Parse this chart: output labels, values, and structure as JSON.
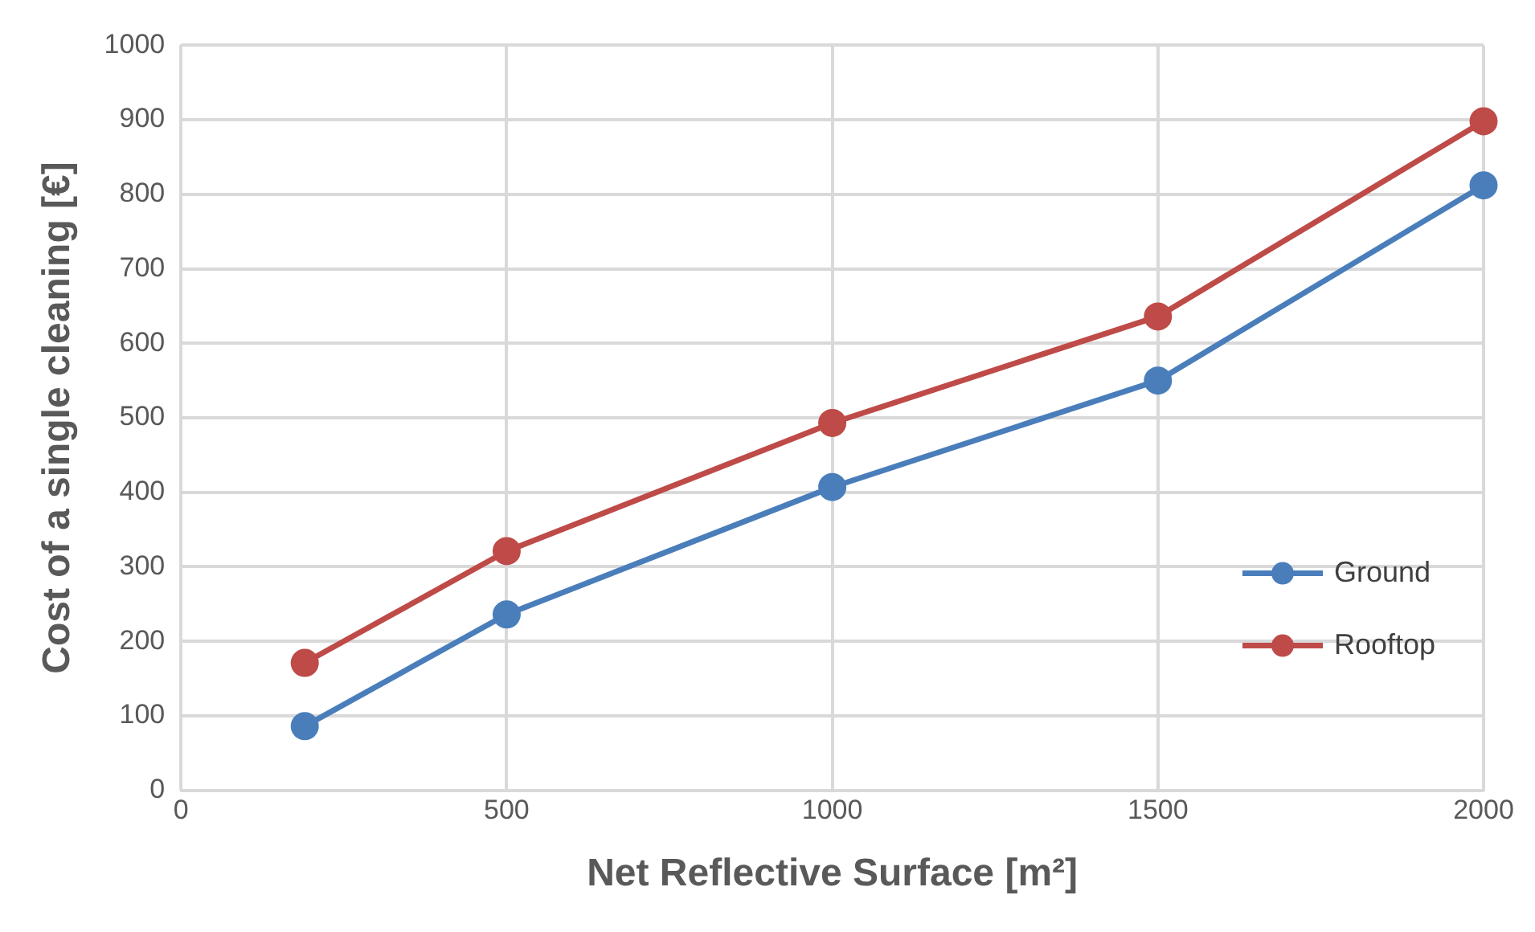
{
  "chart_data": {
    "type": "line",
    "xlabel": "Net Reflective Surface [m²]",
    "ylabel": "Cost of a single cleaning [€]",
    "xlim": [
      0,
      2000
    ],
    "xticks": [
      0,
      500,
      1000,
      1500,
      2000
    ],
    "ylim": [
      0,
      1000
    ],
    "yticks": [
      0,
      100,
      200,
      300,
      400,
      500,
      600,
      700,
      800,
      900,
      1000
    ],
    "x": [
      190,
      500,
      1000,
      1500,
      2000
    ],
    "series": [
      {
        "name": "Ground",
        "color": "#4a7ebb",
        "values": [
          86,
          236,
          407,
          550,
          812
        ]
      },
      {
        "name": "Rooftop",
        "color": "#be4b48",
        "values": [
          171,
          321,
          493,
          636,
          898
        ]
      }
    ],
    "grid": true,
    "legend": "bottom right",
    "marker": "circle",
    "line_style": "solid"
  }
}
